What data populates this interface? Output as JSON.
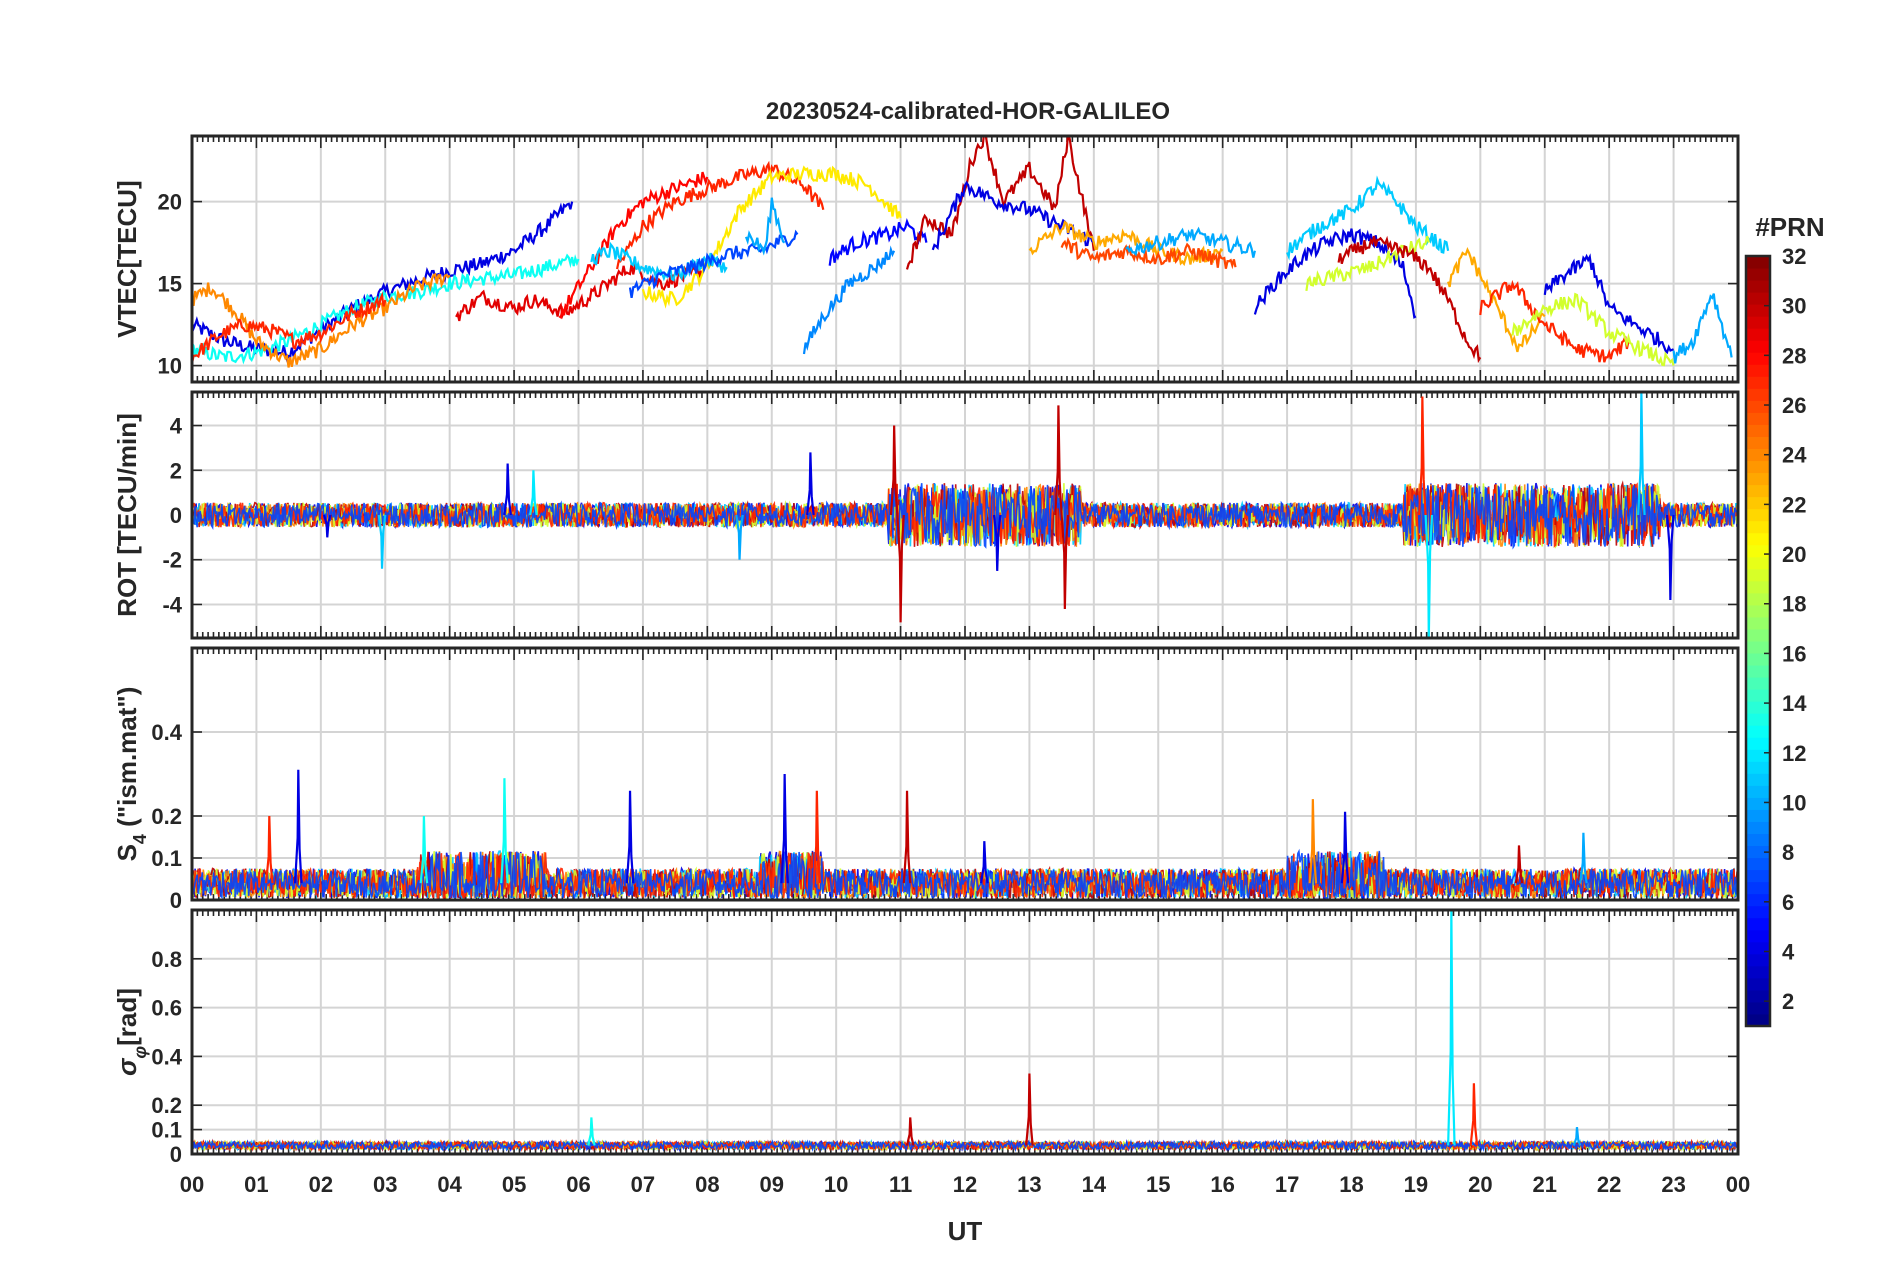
{
  "chart_data": {
    "type": "line",
    "title": "20230524-calibrated-HOR-GALILEO",
    "xlabel": "UT",
    "x_range": [
      0,
      24
    ],
    "x_tick_labels": [
      "00",
      "01",
      "02",
      "03",
      "04",
      "05",
      "06",
      "07",
      "08",
      "09",
      "10",
      "11",
      "12",
      "13",
      "14",
      "15",
      "16",
      "17",
      "18",
      "19",
      "20",
      "21",
      "22",
      "23",
      "00"
    ],
    "grid": true,
    "colorbar": {
      "label": "#PRN",
      "range": [
        1,
        32
      ],
      "tick_labels": [
        "2",
        "4",
        "6",
        "8",
        "10",
        "12",
        "14",
        "16",
        "18",
        "20",
        "22",
        "24",
        "26",
        "28",
        "30",
        "32"
      ],
      "colormap": "jet"
    },
    "panels": [
      {
        "name": "vtec",
        "ylabel": "VTEC[TECU]",
        "ylim": [
          9,
          24
        ],
        "y_tick_labels": [
          "10",
          "15",
          "20"
        ],
        "series": [
          {
            "prn": 4,
            "x": [
              0.0,
              0.5,
              1.0,
              1.5,
              2.0,
              2.5,
              3.0,
              3.5,
              4.0,
              4.5,
              5.0,
              5.5,
              5.9
            ],
            "y": [
              12.5,
              11.5,
              11.0,
              10.8,
              12.2,
              13.5,
              14.5,
              15.2,
              15.8,
              16.2,
              17.0,
              18.5,
              20.0
            ]
          },
          {
            "prn": 13,
            "x": [
              0.0,
              0.5,
              1.0,
              1.5,
              2.0,
              2.5,
              3.0,
              3.5,
              4.0,
              4.5,
              5.0,
              5.5,
              6.0
            ],
            "y": [
              11.0,
              10.5,
              10.8,
              11.5,
              12.5,
              13.5,
              14.2,
              14.5,
              15.0,
              15.3,
              15.5,
              16.0,
              16.5
            ]
          },
          {
            "prn": 24,
            "x": [
              0.0,
              0.3,
              0.7,
              1.0,
              1.5,
              2.0,
              2.5,
              3.0,
              3.5,
              4.0
            ],
            "y": [
              14.0,
              14.8,
              13.2,
              11.5,
              10.2,
              11.0,
              12.5,
              13.5,
              14.8,
              15.5
            ]
          },
          {
            "prn": 27,
            "x": [
              0.0,
              0.4,
              0.8,
              1.2,
              1.6,
              2.0,
              2.5,
              3.0
            ],
            "y": [
              10.5,
              11.8,
              12.5,
              12.2,
              11.5,
              12.0,
              13.2,
              14.0
            ]
          },
          {
            "prn": 29,
            "x": [
              4.1,
              4.5,
              5.0,
              5.3,
              5.8,
              6.3,
              6.8,
              7.3,
              7.9
            ],
            "y": [
              13.0,
              14.2,
              13.5,
              14.0,
              13.2,
              14.5,
              16.0,
              15.0,
              15.8
            ]
          },
          {
            "prn": 28,
            "x": [
              5.7,
              6.2,
              6.6,
              7.0,
              7.5,
              8.0
            ],
            "y": [
              13.0,
              16.0,
              18.5,
              20.0,
              20.8,
              21.5
            ]
          },
          {
            "prn": 27,
            "x": [
              6.6,
              7.0,
              7.5,
              8.0,
              8.5,
              9.0,
              9.5,
              9.8
            ],
            "y": [
              16.0,
              18.5,
              20.0,
              20.8,
              21.5,
              22.0,
              21.0,
              19.5
            ]
          },
          {
            "prn": 21,
            "x": [
              7.0,
              7.5,
              8.0,
              8.5,
              9.0,
              9.5,
              10.0,
              10.5,
              11.0
            ],
            "y": [
              14.5,
              14.0,
              16.0,
              19.5,
              21.5,
              21.7,
              21.7,
              21.0,
              19.0
            ]
          },
          {
            "prn": 11,
            "x": [
              6.2,
              6.5,
              7.0,
              7.5,
              8.0,
              8.3
            ],
            "y": [
              16.5,
              17.0,
              16.0,
              15.5,
              16.5,
              16.0
            ]
          },
          {
            "prn": 7,
            "x": [
              6.8,
              7.3,
              7.8,
              8.3,
              8.8,
              9.4
            ],
            "y": [
              14.5,
              15.5,
              16.0,
              16.8,
              17.0,
              18.0
            ]
          },
          {
            "prn": 10,
            "x": [
              8.6,
              8.9,
              9.0,
              9.2
            ],
            "y": [
              18.0,
              17.0,
              20.0,
              17.5
            ]
          },
          {
            "prn": 9,
            "x": [
              9.5,
              9.8,
              10.2,
              10.6,
              10.9
            ],
            "y": [
              11.0,
              13.0,
              15.0,
              16.0,
              17.0
            ]
          },
          {
            "prn": 5,
            "x": [
              9.9,
              10.3,
              10.8,
              11.1,
              11.4
            ],
            "y": [
              16.5,
              17.5,
              18.0,
              18.5,
              17.5
            ]
          },
          {
            "prn": 30,
            "x": [
              11.1,
              11.4,
              11.8,
              12.1,
              12.3,
              12.6,
              13.0,
              13.4,
              13.6,
              14.0
            ],
            "y": [
              16.0,
              19.0,
              18.0,
              22.5,
              24.0,
              20.0,
              22.0,
              19.5,
              24.0,
              17.0
            ]
          },
          {
            "prn": 4,
            "x": [
              11.5,
              12.0,
              12.5,
              13.0,
              13.5,
              14.0
            ],
            "y": [
              17.0,
              21.0,
              20.0,
              19.5,
              18.5,
              17.5
            ]
          },
          {
            "prn": 23,
            "x": [
              13.0,
              13.5,
              14.0,
              14.5,
              15.0,
              15.5,
              16.0
            ],
            "y": [
              17.0,
              18.5,
              17.5,
              18.0,
              17.0,
              16.5,
              17.0
            ]
          },
          {
            "prn": 26,
            "x": [
              13.5,
              14.0,
              14.5,
              15.0,
              15.5,
              16.2
            ],
            "y": [
              17.5,
              16.5,
              17.0,
              16.5,
              17.0,
              16.0
            ]
          },
          {
            "prn": 10,
            "x": [
              14.5,
              15.0,
              15.5,
              16.0,
              16.5
            ],
            "y": [
              17.0,
              17.5,
              18.0,
              17.5,
              17.0
            ]
          },
          {
            "prn": 4,
            "x": [
              16.5,
              16.8,
              17.2,
              17.6,
              18.0,
              18.4,
              18.8,
              19.0
            ],
            "y": [
              13.5,
              15.0,
              16.5,
              17.5,
              18.0,
              17.5,
              16.0,
              13.0
            ]
          },
          {
            "prn": 11,
            "x": [
              17.0,
              17.5,
              18.0,
              18.4,
              18.7,
              19.0,
              19.5
            ],
            "y": [
              17.0,
              18.5,
              19.5,
              21.0,
              20.0,
              18.5,
              17.0
            ]
          },
          {
            "prn": 19,
            "x": [
              17.3,
              17.8,
              18.3,
              18.8,
              19.2
            ],
            "y": [
              15.0,
              15.5,
              16.0,
              17.0,
              17.5
            ]
          },
          {
            "prn": 30,
            "x": [
              17.8,
              18.3,
              18.8,
              19.2,
              19.5,
              19.8,
              20.0
            ],
            "y": [
              16.5,
              17.5,
              17.0,
              16.0,
              14.0,
              11.5,
              10.5
            ]
          },
          {
            "prn": 23,
            "x": [
              19.5,
              19.8,
              20.2,
              20.6,
              21.0
            ],
            "y": [
              15.0,
              17.0,
              14.0,
              11.0,
              13.0
            ]
          },
          {
            "prn": 27,
            "x": [
              20.0,
              20.5,
              21.0,
              21.5,
              22.0,
              22.3
            ],
            "y": [
              13.5,
              15.0,
              12.5,
              11.0,
              10.5,
              11.5
            ]
          },
          {
            "prn": 19,
            "x": [
              20.5,
              21.0,
              21.5,
              22.0,
              22.5,
              23.0
            ],
            "y": [
              12.0,
              13.5,
              14.0,
              12.0,
              11.0,
              10.0
            ]
          },
          {
            "prn": 4,
            "x": [
              21.0,
              21.3,
              21.7,
              22.0,
              22.4,
              23.0
            ],
            "y": [
              14.5,
              15.5,
              16.5,
              13.5,
              12.5,
              11.0
            ]
          },
          {
            "prn": 10,
            "x": [
              23.0,
              23.3,
              23.6,
              23.9
            ],
            "y": [
              10.5,
              11.5,
              14.5,
              10.5
            ]
          }
        ]
      },
      {
        "name": "rot",
        "ylabel": "ROT [TECU/min]",
        "ylim": [
          -5.5,
          5.5
        ],
        "y_tick_labels": [
          "-4",
          "-2",
          "0",
          "2",
          "4"
        ],
        "spikes": [
          {
            "prn": 4,
            "x": 2.1,
            "y": -1.0
          },
          {
            "prn": 11,
            "x": 2.95,
            "y": -2.4
          },
          {
            "prn": 4,
            "x": 4.9,
            "y": 2.3
          },
          {
            "prn": 12,
            "x": 5.3,
            "y": 2.0
          },
          {
            "prn": 10,
            "x": 8.5,
            "y": -2.0
          },
          {
            "prn": 4,
            "x": 9.6,
            "y": 2.8
          },
          {
            "prn": 30,
            "x": 11.0,
            "y": -4.8
          },
          {
            "prn": 30,
            "x": 10.9,
            "y": 4.0
          },
          {
            "prn": 4,
            "x": 12.5,
            "y": -2.5
          },
          {
            "prn": 30,
            "x": 13.45,
            "y": 4.9
          },
          {
            "prn": 30,
            "x": 13.55,
            "y": -4.2
          },
          {
            "prn": 27,
            "x": 19.1,
            "y": 5.3
          },
          {
            "prn": 12,
            "x": 19.2,
            "y": -5.5
          },
          {
            "prn": 11,
            "x": 22.5,
            "y": 5.5
          },
          {
            "prn": 4,
            "x": 22.95,
            "y": -3.8
          }
        ]
      },
      {
        "name": "s4",
        "ylabel": "S_4 (\"ism.mat\")",
        "ylim": [
          0,
          0.6
        ],
        "y_tick_labels": [
          "0",
          "0.1",
          "0.2",
          "0.4"
        ],
        "spikes": [
          {
            "prn": 4,
            "x": 1.65,
            "y": 0.31
          },
          {
            "prn": 27,
            "x": 1.2,
            "y": 0.2
          },
          {
            "prn": 13,
            "x": 4.85,
            "y": 0.29
          },
          {
            "prn": 13,
            "x": 3.6,
            "y": 0.2
          },
          {
            "prn": 4,
            "x": 6.8,
            "y": 0.26
          },
          {
            "prn": 4,
            "x": 9.2,
            "y": 0.3
          },
          {
            "prn": 27,
            "x": 9.7,
            "y": 0.26
          },
          {
            "prn": 30,
            "x": 11.1,
            "y": 0.26
          },
          {
            "prn": 4,
            "x": 12.3,
            "y": 0.14
          },
          {
            "prn": 24,
            "x": 17.4,
            "y": 0.24
          },
          {
            "prn": 4,
            "x": 17.9,
            "y": 0.21
          },
          {
            "prn": 30,
            "x": 20.6,
            "y": 0.13
          },
          {
            "prn": 10,
            "x": 21.6,
            "y": 0.16
          }
        ]
      },
      {
        "name": "sigma_phi",
        "ylabel": "σ_φ[rad]",
        "ylim": [
          0,
          1
        ],
        "y_tick_labels": [
          "0",
          "0.1",
          "0.2",
          "0.4",
          "0.6",
          "0.8"
        ],
        "spikes": [
          {
            "prn": 13,
            "x": 6.2,
            "y": 0.15
          },
          {
            "prn": 30,
            "x": 11.15,
            "y": 0.15
          },
          {
            "prn": 30,
            "x": 13.0,
            "y": 0.33
          },
          {
            "prn": 12,
            "x": 19.55,
            "y": 1.0
          },
          {
            "prn": 27,
            "x": 19.9,
            "y": 0.29
          },
          {
            "prn": 10,
            "x": 21.5,
            "y": 0.11
          }
        ]
      }
    ]
  }
}
